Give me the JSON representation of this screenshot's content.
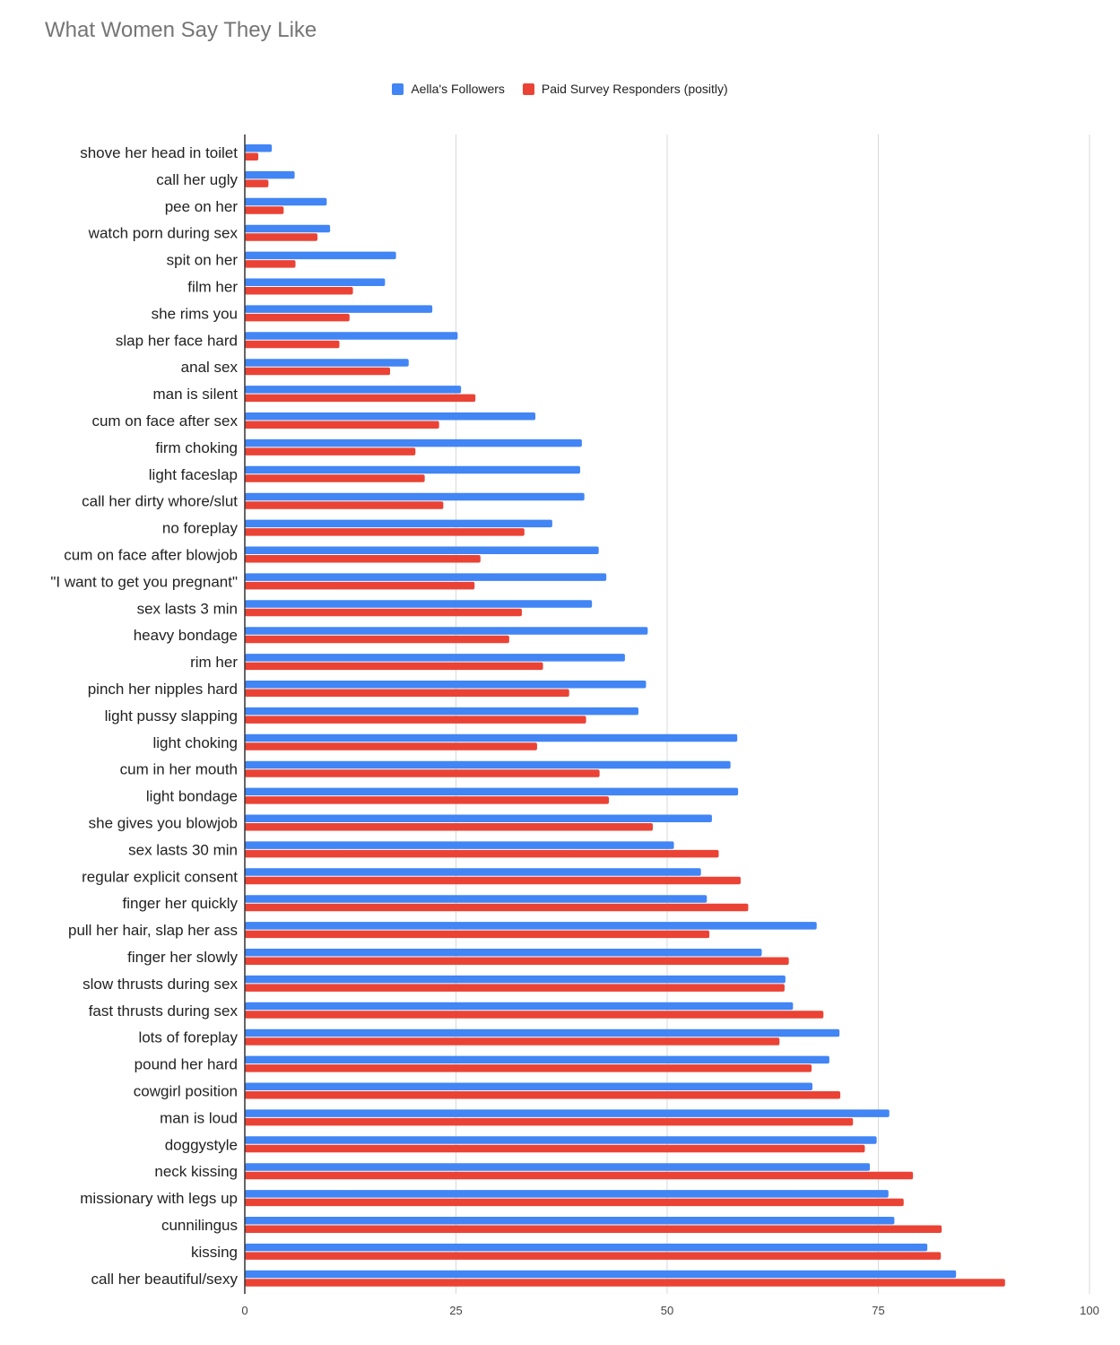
{
  "chart_data": {
    "type": "bar",
    "orientation": "horizontal",
    "title": "What Women Say They Like",
    "xlabel": "",
    "ylabel": "",
    "xlim": [
      0,
      100
    ],
    "x_ticks": [
      "0",
      "25",
      "50",
      "75",
      "100"
    ],
    "grid": true,
    "legend_position": "top",
    "categories": [
      "shove her head in toilet",
      "call her ugly",
      "pee on her",
      "watch porn during sex",
      "spit on her",
      "film her",
      "she rims you",
      "slap her face hard",
      "anal sex",
      "man is silent",
      "cum on face after sex",
      "firm choking",
      "light faceslap",
      "call her dirty whore/slut",
      "no foreplay",
      "cum on face after blowjob",
      "\"I want to get you pregnant\"",
      "sex lasts 3 min",
      "heavy bondage",
      "rim her",
      "pinch her nipples hard",
      "light pussy slapping",
      "light choking",
      "cum in her mouth",
      "light bondage",
      "she gives you blowjob",
      "sex lasts 30 min",
      "regular explicit consent",
      "finger her quickly",
      "pull her hair, slap her ass",
      "finger her slowly",
      "slow thrusts during sex",
      "fast thrusts during sex",
      "lots of foreplay",
      "pound her hard",
      "cowgirl position",
      "man is loud",
      "doggystyle",
      "neck kissing",
      "missionary with legs up",
      "cunnilingus",
      "kissing",
      "call her beautiful/sexy"
    ],
    "series": [
      {
        "name": "Aella's Followers",
        "color": "#4285f4",
        "values": [
          3.2,
          5.9,
          9.7,
          10.1,
          17.9,
          16.6,
          22.2,
          25.2,
          19.4,
          25.6,
          34.4,
          39.9,
          39.7,
          40.2,
          36.4,
          41.9,
          42.8,
          41.1,
          47.7,
          45.0,
          47.5,
          46.6,
          58.3,
          57.5,
          58.4,
          55.3,
          50.8,
          54.0,
          54.7,
          67.7,
          61.2,
          64.0,
          64.9,
          70.4,
          69.2,
          67.2,
          76.3,
          74.8,
          74.0,
          76.2,
          76.9,
          80.8,
          84.2
        ]
      },
      {
        "name": "Paid Survey Responders (positly)",
        "color": "#ea4335",
        "values": [
          1.6,
          2.8,
          4.6,
          8.6,
          6.0,
          12.8,
          12.4,
          11.2,
          17.2,
          27.3,
          23.0,
          20.2,
          21.3,
          23.5,
          33.1,
          27.9,
          27.2,
          32.8,
          31.3,
          35.3,
          38.4,
          40.4,
          34.6,
          42.0,
          43.1,
          48.3,
          56.1,
          58.7,
          59.6,
          55.0,
          64.4,
          63.9,
          68.5,
          63.3,
          67.1,
          70.5,
          72.0,
          73.4,
          79.1,
          78.0,
          82.5,
          82.4,
          90.0
        ]
      }
    ]
  }
}
